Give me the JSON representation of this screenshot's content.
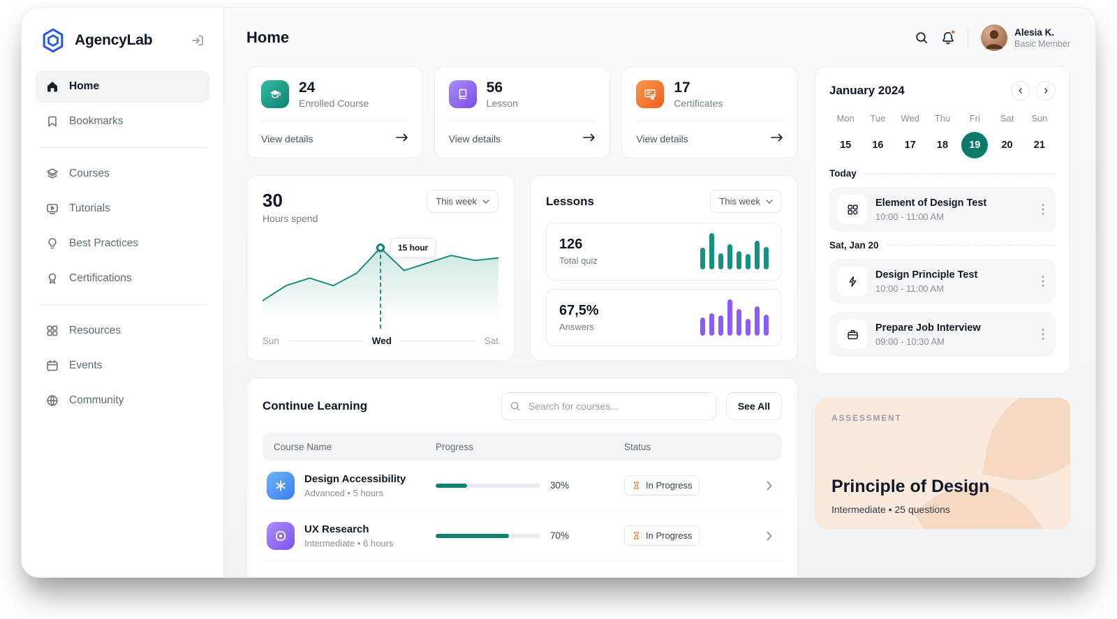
{
  "app": {
    "name": "AgencyLab"
  },
  "theme": {
    "accent_teal": "#0d8270",
    "accent_purple": "#8b5cf6",
    "accent_orange": "#f2711f",
    "accent_blue": "#3a7ef0",
    "selected_day_bg": "#0c7a6b",
    "assessment_bg": "#fae9dd"
  },
  "sidebar": {
    "active_item": "Home",
    "items": [
      {
        "label": "Home",
        "icon": "home-icon"
      },
      {
        "label": "Bookmarks",
        "icon": "bookmark-icon"
      },
      {
        "label": "Courses",
        "icon": "layers-icon"
      },
      {
        "label": "Tutorials",
        "icon": "video-tutorial-icon"
      },
      {
        "label": "Best Practices",
        "icon": "lightbulb-icon"
      },
      {
        "label": "Certifications",
        "icon": "badge-icon"
      },
      {
        "label": "Resources",
        "icon": "apps-grid-icon"
      },
      {
        "label": "Events",
        "icon": "calendar-icon"
      },
      {
        "label": "Community",
        "icon": "globe-icon"
      }
    ]
  },
  "header": {
    "title": "Home",
    "user_name": "Alesia K.",
    "user_role": "Basic Member",
    "icons": [
      "search-icon",
      "bell-icon"
    ]
  },
  "stats": [
    {
      "value": "24",
      "label": "Enrolled Course",
      "action": "View details",
      "icon": "graduation-cap-icon",
      "color": "#0d8270"
    },
    {
      "value": "56",
      "label": "Lesson",
      "action": "View details",
      "icon": "book-icon",
      "color": "#8b5cf6"
    },
    {
      "value": "17",
      "label": "Certificates",
      "action": "View details",
      "icon": "certificate-icon",
      "color": "#f2711f"
    }
  ],
  "hours_card": {
    "value": "30",
    "label": "Hours spend",
    "filter": "This week",
    "tooltip": "15 hour",
    "axis_labels": [
      "Sun",
      "Wed",
      "Sat"
    ],
    "chart_data": {
      "type": "line",
      "unit": "hours",
      "x_range": [
        "Sun",
        "Sat"
      ],
      "values": [
        4.5,
        7.5,
        9,
        7.5,
        10,
        15,
        10.5,
        12,
        13.5,
        12.5,
        13
      ],
      "marker_index": 5,
      "marker_value": 15,
      "ymax": 16,
      "color": "#12897a"
    }
  },
  "lessons_card": {
    "title": "Lessons",
    "filter": "This week",
    "quiz": {
      "value": "126",
      "label": "Total quiz",
      "chart_data": {
        "type": "bar",
        "values": [
          60,
          100,
          45,
          70,
          50,
          42,
          80,
          62
        ],
        "color": "#15917f"
      }
    },
    "answers": {
      "value": "67,5%",
      "label": "Answers",
      "chart_data": {
        "type": "bar",
        "values": [
          50,
          62,
          55,
          100,
          72,
          46,
          80,
          58
        ],
        "color": "#8b5cf6"
      }
    }
  },
  "continue_learning": {
    "title": "Continue Learning",
    "search_placeholder": "Search for courses...",
    "see_all_label": "See All",
    "columns": [
      "Course Name",
      "Progress",
      "Status"
    ],
    "rows": [
      {
        "name": "Design Accessibility",
        "meta": "Advanced  •  5 hours",
        "progress": 30,
        "progress_label": "30%",
        "status": "In Progress",
        "icon": "flower-asterisk-icon",
        "icon_color": "#3a7ef0"
      },
      {
        "name": "UX Research",
        "meta": "Intermediate  •  6 hours",
        "progress": 70,
        "progress_label": "70%",
        "status": "In Progress",
        "icon": "rounded-square-icon",
        "icon_color": "#7c52ee"
      }
    ]
  },
  "calendar": {
    "month": "January 2024",
    "day_headers": [
      "Mon",
      "Tue",
      "Wed",
      "Thu",
      "Fri",
      "Sat",
      "Sun"
    ],
    "dates": [
      "15",
      "16",
      "17",
      "18",
      "19",
      "20",
      "21"
    ],
    "selected_date": "19",
    "sections": [
      {
        "label": "Today",
        "events": [
          {
            "title": "Element of Design Test",
            "time": "10:00 - 11:00 AM",
            "icon": "design-grid-icon"
          }
        ]
      },
      {
        "label": "Sat, Jan 20",
        "events": [
          {
            "title": "Design Principle Test",
            "time": "10:00 - 11:00 AM",
            "icon": "lightning-icon"
          },
          {
            "title": "Prepare Job Interview",
            "time": "09:00 - 10:30 AM",
            "icon": "briefcase-icon"
          }
        ]
      }
    ]
  },
  "assessment": {
    "label": "ASSESSMENT",
    "title": "Principle of Design",
    "meta": "Intermediate  •  25 questions"
  }
}
